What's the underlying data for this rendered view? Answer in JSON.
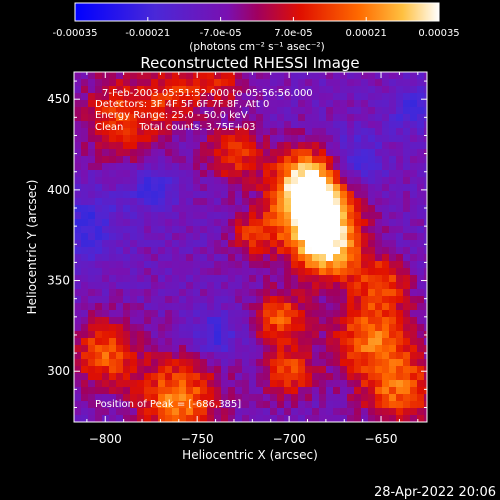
{
  "colorbar": {
    "tick_labels": [
      "-0.00035",
      "-0.00021",
      "-7.0e-05",
      "7.0e-05",
      "0.00021",
      "0.00035"
    ],
    "tick_values": [
      -0.00035,
      -0.00021,
      -7e-05,
      7e-05,
      0.00021,
      0.00035
    ],
    "range": [
      -0.00035,
      0.00035
    ],
    "unit_label": "(photons cm⁻² s⁻¹ asec⁻²)",
    "colors": [
      "#0000ff",
      "#5a20d0",
      "#8a00a0",
      "#e01000",
      "#ff8000",
      "#ffffff"
    ]
  },
  "chart_data": {
    "type": "heatmap",
    "title": "Reconstructed RHESSI Image",
    "xlabel": "Heliocentric X (arcsec)",
    "ylabel": "Heliocentric Y (arcsec)",
    "xlim": [
      -817,
      -625
    ],
    "ylim": [
      272,
      465
    ],
    "x_ticks": [
      -800,
      -750,
      -700,
      -650
    ],
    "y_ticks": [
      300,
      350,
      400,
      450
    ],
    "x_tick_labels": [
      "−800",
      "−750",
      "−700",
      "−650"
    ],
    "y_tick_labels": [
      "300",
      "350",
      "400",
      "450"
    ],
    "peak": {
      "x": -686,
      "y": 385
    },
    "annotations": [
      "7-Feb-2003 05:51:52.000 to 05:56:56.000",
      "Detectors: 3F 4F 5F 6F 7F 8F, Att 0",
      "Energy Range: 25.0 - 50.0 keV",
      "Clean     Total counts: 3.75E+03"
    ],
    "peak_label": "Position of Peak = [-686,385]"
  },
  "footer": {
    "timestamp": "28-Apr-2022 20:06"
  }
}
